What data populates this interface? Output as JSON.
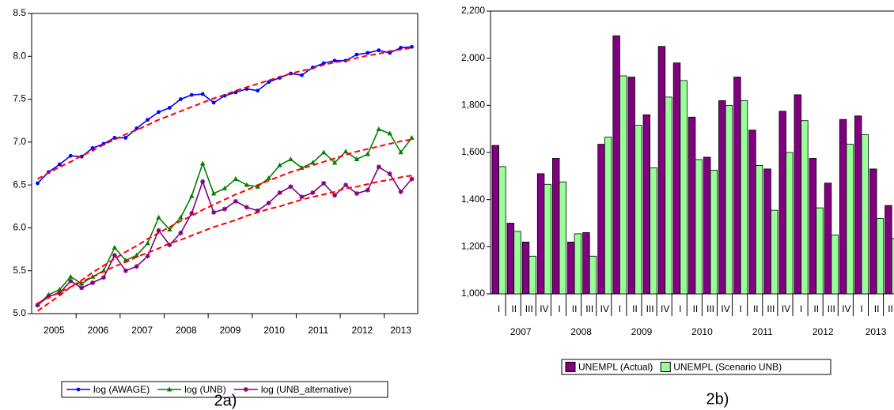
{
  "chart_data": [
    {
      "type": "line",
      "caption": "2a)",
      "categories": [
        "2005",
        null,
        null,
        null,
        "2006",
        null,
        null,
        null,
        "2007",
        null,
        null,
        null,
        "2008",
        null,
        null,
        null,
        "2009",
        null,
        null,
        null,
        "2010",
        null,
        null,
        null,
        "2011",
        null,
        null,
        null,
        "2012",
        null,
        null,
        null,
        "2013",
        null,
        null
      ],
      "ylim": [
        5,
        8.5
      ],
      "yticks": [
        {
          "value": 5,
          "label": "5.0"
        },
        5.5,
        {
          "value": 6,
          "label": "6.0"
        },
        6.5,
        {
          "value": 7,
          "label": "7.0"
        },
        7.5,
        {
          "value": 8,
          "label": "8.0"
        },
        8.5
      ],
      "grid": false,
      "legend": "bottom",
      "series": [
        {
          "name": "log (AWAGE)",
          "color": "#0000ff",
          "marker": "circle",
          "values": [
            6.52,
            6.65,
            6.74,
            6.84,
            6.83,
            6.93,
            6.98,
            7.05,
            7.05,
            7.16,
            7.26,
            7.35,
            7.4,
            7.5,
            7.55,
            7.56,
            7.46,
            7.54,
            7.58,
            7.62,
            7.6,
            7.7,
            7.75,
            7.8,
            7.78,
            7.87,
            7.92,
            7.95,
            7.95,
            8.02,
            8.04,
            8.07,
            8.04,
            8.1,
            8.11
          ]
        },
        {
          "name": "log (UNB)",
          "color": "#008000",
          "marker": "triangle",
          "values": [
            5.1,
            5.22,
            5.28,
            5.43,
            5.35,
            5.43,
            5.5,
            5.77,
            5.62,
            5.68,
            5.82,
            6.12,
            5.98,
            6.12,
            6.37,
            6.75,
            6.4,
            6.46,
            6.57,
            6.5,
            6.48,
            6.58,
            6.73,
            6.8,
            6.7,
            6.76,
            6.88,
            6.76,
            6.89,
            6.8,
            6.86,
            7.15,
            7.1,
            6.88,
            7.05
          ]
        },
        {
          "name": "log (UNB_alternative)",
          "color": "#800080",
          "marker": "star",
          "values": [
            5.1,
            5.2,
            5.24,
            5.38,
            5.3,
            5.36,
            5.42,
            5.68,
            5.5,
            5.55,
            5.67,
            5.97,
            5.8,
            5.94,
            6.17,
            6.54,
            6.18,
            6.22,
            6.31,
            6.24,
            6.2,
            6.29,
            6.41,
            6.48,
            6.36,
            6.41,
            6.52,
            6.38,
            6.5,
            6.4,
            6.44,
            6.71,
            6.63,
            6.42,
            6.57
          ]
        }
      ],
      "trend_lines": [
        {
          "color": "#ff0000",
          "dash": true,
          "values": [
            6.57,
            6.64,
            6.71,
            6.77,
            6.84,
            6.9,
            6.97,
            7.03,
            7.09,
            7.14,
            7.2,
            7.26,
            7.31,
            7.36,
            7.41,
            7.46,
            7.51,
            7.55,
            7.6,
            7.64,
            7.68,
            7.72,
            7.76,
            7.8,
            7.83,
            7.86,
            7.9,
            7.93,
            7.95,
            7.98,
            8.01,
            8.03,
            8.06,
            8.08,
            8.1
          ]
        },
        {
          "color": "#ff0000",
          "dash": true,
          "values": [
            5.03,
            5.12,
            5.21,
            5.31,
            5.39,
            5.48,
            5.56,
            5.64,
            5.72,
            5.79,
            5.87,
            5.94,
            6.01,
            6.08,
            6.14,
            6.21,
            6.27,
            6.33,
            6.39,
            6.44,
            6.5,
            6.55,
            6.6,
            6.65,
            6.69,
            6.73,
            6.77,
            6.81,
            6.85,
            6.89,
            6.92,
            6.95,
            6.98,
            7.01,
            7.03
          ]
        },
        {
          "color": "#ff0000",
          "dash": true,
          "values": [
            5.12,
            5.19,
            5.25,
            5.31,
            5.37,
            5.43,
            5.49,
            5.55,
            5.6,
            5.66,
            5.71,
            5.76,
            5.82,
            5.86,
            5.91,
            5.96,
            6.01,
            6.05,
            6.09,
            6.14,
            6.18,
            6.22,
            6.25,
            6.29,
            6.33,
            6.36,
            6.39,
            6.42,
            6.46,
            6.48,
            6.51,
            6.54,
            6.56,
            6.59,
            6.61
          ]
        }
      ]
    },
    {
      "type": "bar",
      "caption": "2b)",
      "categories": [
        "I",
        "II",
        "III",
        "IV",
        "I",
        "II",
        "III",
        "IV",
        "I",
        "II",
        "III",
        "IV",
        "I",
        "II",
        "III",
        "IV",
        "I",
        "II",
        "III",
        "IV",
        "I",
        "II",
        "III",
        "IV",
        "I",
        "II",
        "III"
      ],
      "category_groups": [
        "2007",
        null,
        null,
        null,
        "2008",
        null,
        null,
        null,
        "2009",
        null,
        null,
        null,
        "2010",
        null,
        null,
        null,
        "2011",
        null,
        null,
        null,
        "2012",
        null,
        null,
        null,
        "2013",
        null,
        null
      ],
      "ylim": [
        1000,
        2200
      ],
      "yticks": [
        {
          "value": 1000,
          "label": "1,000"
        },
        {
          "value": 1200,
          "label": "1,200"
        },
        {
          "value": 1400,
          "label": "1,400"
        },
        {
          "value": 1600,
          "label": "1,600"
        },
        {
          "value": 1800,
          "label": "1,800"
        },
        {
          "value": 2000,
          "label": "2,000"
        },
        {
          "value": 2200,
          "label": "2,200"
        }
      ],
      "grid": false,
      "legend": "bottom",
      "series": [
        {
          "name": "UNEMPL (Actual)",
          "color": "#800080",
          "values": [
            1630,
            1300,
            1220,
            1510,
            1575,
            1220,
            1260,
            1635,
            2095,
            1920,
            1760,
            2050,
            1980,
            1750,
            1580,
            1820,
            1920,
            1695,
            1530,
            1775,
            1845,
            1575,
            1470,
            1740,
            1755,
            1530,
            1375
          ]
        },
        {
          "name": "UNEMPL (Scenario UNB)",
          "color": "#99ff99",
          "values": [
            1540,
            1265,
            1160,
            1465,
            1475,
            1255,
            1160,
            1665,
            1925,
            1715,
            1535,
            1835,
            1905,
            1570,
            1525,
            1800,
            1820,
            1545,
            1355,
            1600,
            1735,
            1365,
            1250,
            1635,
            1675,
            1320,
            1235
          ]
        }
      ]
    }
  ]
}
